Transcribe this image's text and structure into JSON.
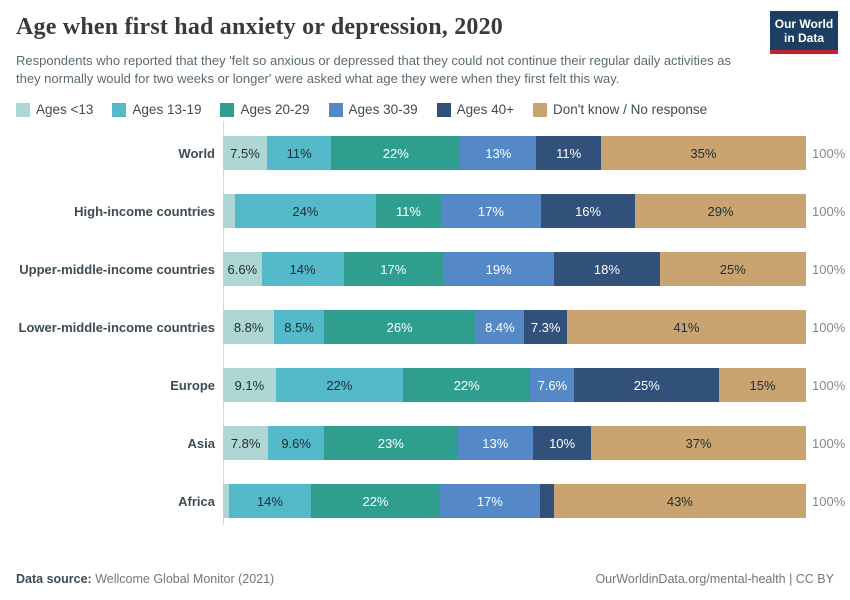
{
  "logo": {
    "line1": "Our World",
    "line2": "in Data",
    "bg_color": "#1d3d63",
    "accent_color": "#c0232f"
  },
  "header": {
    "title": "Age when first had anxiety or depression, 2020",
    "subtitle": "Respondents who reported that they 'felt so anxious or depressed that they could not continue their regular daily activities as they normally would for two weeks or longer' were asked what age they were when they first felt this way."
  },
  "chart_data": {
    "type": "bar",
    "orientation": "horizontal",
    "stacked": true,
    "unit": "%",
    "xlim": [
      0,
      100
    ],
    "grid": false,
    "legend_position": "top",
    "total_label": "100%",
    "categories": [
      "World",
      "High-income countries",
      "Upper-middle-income countries",
      "Lower-middle-income countries",
      "Europe",
      "Asia",
      "Africa"
    ],
    "series": [
      {
        "name": "Ages <13",
        "color": "#aed6d2",
        "label_color": "#1d2d35",
        "values": [
          7.5,
          2,
          6.6,
          8.8,
          9.1,
          7.8,
          1
        ],
        "labels": [
          "7.5%",
          "",
          "6.6%",
          "8.8%",
          "9.1%",
          "7.8%",
          ""
        ]
      },
      {
        "name": "Ages 13-19",
        "color": "#54b9c8",
        "label_color": "#1d2d35",
        "values": [
          11,
          24,
          14,
          8.5,
          22,
          9.6,
          14
        ],
        "labels": [
          "11%",
          "24%",
          "14%",
          "8.5%",
          "22%",
          "9.6%",
          "14%"
        ]
      },
      {
        "name": "Ages 20-29",
        "color": "#2f9e8f",
        "label_color": "#ffffff",
        "values": [
          22,
          11,
          17,
          26,
          22,
          23,
          22
        ],
        "labels": [
          "22%",
          "11%",
          "17%",
          "26%",
          "22%",
          "23%",
          "22%"
        ]
      },
      {
        "name": "Ages 30-39",
        "color": "#5588c7",
        "label_color": "#ffffff",
        "values": [
          13,
          17,
          19,
          8.4,
          7.6,
          13,
          17
        ],
        "labels": [
          "13%",
          "17%",
          "19%",
          "8.4%",
          "7.6%",
          "13%",
          "17%"
        ]
      },
      {
        "name": "Ages 40+",
        "color": "#31517a",
        "label_color": "#ffffff",
        "values": [
          11,
          16,
          18,
          7.3,
          25,
          10,
          2.4
        ],
        "labels": [
          "11%",
          "16%",
          "18%",
          "7.3%",
          "25%",
          "10%",
          ""
        ]
      },
      {
        "name": "Don't know / No response",
        "color": "#c9a470",
        "label_color": "#1d2d35",
        "values": [
          35,
          29,
          25,
          41,
          15,
          37,
          43
        ],
        "labels": [
          "35%",
          "29%",
          "25%",
          "41%",
          "15%",
          "37%",
          "43%"
        ]
      }
    ]
  },
  "footer": {
    "source_label": "Data source:",
    "source_value": " Wellcome Global Monitor (2021)",
    "link": "OurWorldinData.org/mental-health | CC BY"
  }
}
